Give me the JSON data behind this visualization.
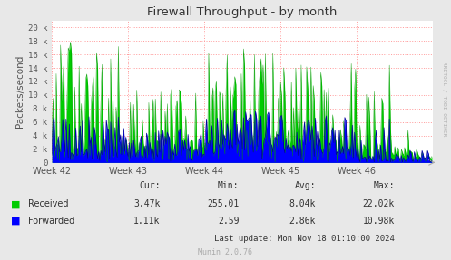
{
  "title": "Firewall Throughput - by month",
  "ylabel": "Packets/second",
  "xlabel_ticks": [
    "Week 42",
    "Week 43",
    "Week 44",
    "Week 45",
    "Week 46"
  ],
  "yticks": [
    0,
    2000,
    4000,
    6000,
    8000,
    10000,
    12000,
    14000,
    16000,
    18000,
    20000
  ],
  "ytick_labels": [
    "0",
    "2 k",
    "4 k",
    "6 k",
    "8 k",
    "10 k",
    "12 k",
    "14 k",
    "16 k",
    "18 k",
    "20 k"
  ],
  "ylim": [
    0,
    21000
  ],
  "xlim": [
    0,
    350
  ],
  "bg_color": "#e8e8e8",
  "plot_bg_color": "#ffffff",
  "grid_color": "#ff9999",
  "received_color": "#00cc00",
  "forwarded_color": "#0000ff",
  "received_edge_color": "#009900",
  "forwarded_edge_color": "#000099",
  "legend_received": "Received",
  "legend_forwarded": "Forwarded",
  "cur_received": "3.47k",
  "min_received": "255.01",
  "avg_received": "8.04k",
  "max_received": "22.02k",
  "cur_forwarded": "1.11k",
  "min_forwarded": "2.59",
  "avg_forwarded": "2.86k",
  "max_forwarded": "10.98k",
  "last_update": "Last update: Mon Nov 18 01:10:00 2024",
  "munin_version": "Munin 2.0.76",
  "rrdtool_label": "RRDTOOL / TOBI OETIKER",
  "title_color": "#333333",
  "axis_color": "#555555",
  "legend_color": "#333333",
  "num_points": 350,
  "seed": 42,
  "week_positions": [
    0,
    70,
    140,
    210,
    280
  ]
}
